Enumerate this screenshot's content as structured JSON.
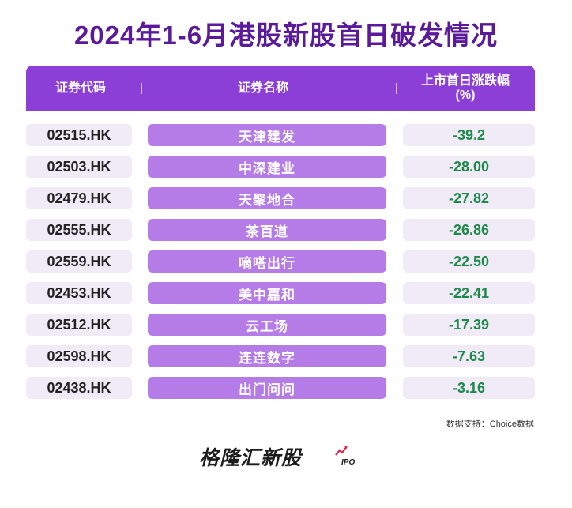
{
  "title": "2024年1-6月港股新股首日破发情况",
  "header": {
    "col_code": "证券代码",
    "col_name": "证券名称",
    "col_change": "上市首日涨跌幅\n(%)"
  },
  "chart_data": {
    "type": "table",
    "columns": [
      "证券代码",
      "证券名称",
      "上市首日涨跌幅(%)"
    ],
    "rows": [
      {
        "code": "02515.HK",
        "name": "天津建发",
        "change": "-39.2"
      },
      {
        "code": "02503.HK",
        "name": "中深建业",
        "change": "-28.00"
      },
      {
        "code": "02479.HK",
        "name": "天聚地合",
        "change": "-27.82"
      },
      {
        "code": "02555.HK",
        "name": "茶百道",
        "change": "-26.86"
      },
      {
        "code": "02559.HK",
        "name": "嘀嗒出行",
        "change": "-22.50"
      },
      {
        "code": "02453.HK",
        "name": "美中嘉和",
        "change": "-22.41"
      },
      {
        "code": "02512.HK",
        "name": "云工场",
        "change": "-17.39"
      },
      {
        "code": "02598.HK",
        "name": "连连数字",
        "change": "-7.63"
      },
      {
        "code": "02438.HK",
        "name": "出门问问",
        "change": "-3.16"
      }
    ]
  },
  "source": "数据支持：Choice数据",
  "logo": {
    "text": "格隆汇新股",
    "sub": "IPO",
    "icon": "rising-arrow-icon"
  },
  "colors": {
    "title": "#5a1a99",
    "header_bg": "#8b3fd6",
    "name_cell_bg": "#b57ce8",
    "light_cell_bg": "#f1ebf8",
    "value_text": "#1e8a4a",
    "arrow": "#e0264a"
  }
}
